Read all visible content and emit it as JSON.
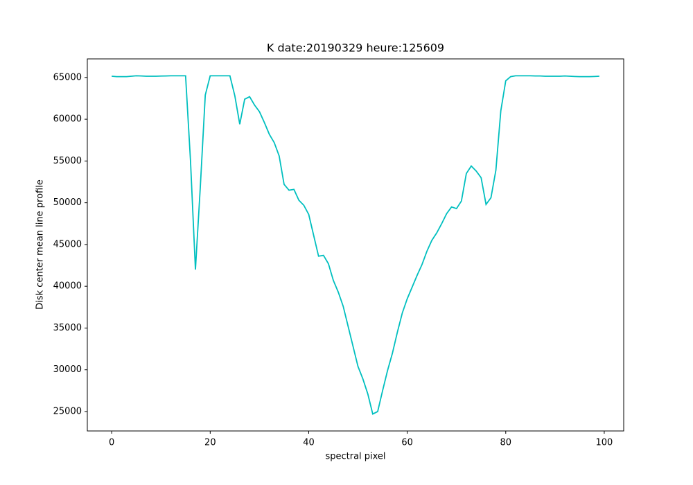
{
  "chart_data": {
    "type": "line",
    "title": "K date:20190329 heure:125609",
    "x_label": "spectral pixel",
    "y_label": "Disk center mean line profile",
    "x": [
      0,
      1,
      2,
      3,
      4,
      5,
      6,
      7,
      8,
      9,
      10,
      11,
      12,
      13,
      14,
      15,
      16,
      17,
      18,
      19,
      20,
      21,
      22,
      23,
      24,
      25,
      26,
      27,
      28,
      29,
      30,
      31,
      32,
      33,
      34,
      35,
      36,
      37,
      38,
      39,
      40,
      41,
      42,
      43,
      44,
      45,
      46,
      47,
      48,
      49,
      50,
      51,
      52,
      53,
      54,
      55,
      56,
      57,
      58,
      59,
      60,
      61,
      62,
      63,
      64,
      65,
      66,
      67,
      68,
      69,
      70,
      71,
      72,
      73,
      74,
      75,
      76,
      77,
      78,
      79,
      80,
      81,
      82,
      83,
      84,
      85,
      86,
      87,
      88,
      89,
      90,
      91,
      92,
      93,
      94,
      95,
      96,
      97,
      98,
      99
    ],
    "series": [
      {
        "name": "Disk center mean line profile",
        "color": "#00bfbf",
        "values": [
          65150,
          65100,
          65100,
          65100,
          65150,
          65200,
          65180,
          65150,
          65150,
          65150,
          65170,
          65180,
          65200,
          65200,
          65200,
          65200,
          55000,
          42000,
          52000,
          62900,
          65200,
          65200,
          65200,
          65200,
          65200,
          62800,
          59400,
          62400,
          62700,
          61700,
          60900,
          59600,
          58200,
          57200,
          55600,
          52200,
          51500,
          51600,
          50300,
          49700,
          48600,
          46100,
          43600,
          43700,
          42700,
          40700,
          39300,
          37600,
          35200,
          32800,
          30400,
          28900,
          27100,
          24700,
          25000,
          27500,
          29900,
          32000,
          34500,
          36800,
          38500,
          39900,
          41300,
          42600,
          44200,
          45500,
          46400,
          47500,
          48700,
          49500,
          49300,
          50200,
          53500,
          54400,
          53800,
          53000,
          49800,
          50600,
          53900,
          61000,
          64600,
          65100,
          65200,
          65200,
          65200,
          65200,
          65180,
          65180,
          65150,
          65150,
          65150,
          65150,
          65180,
          65150,
          65120,
          65100,
          65100,
          65100,
          65120,
          65150
        ]
      }
    ],
    "xlim": [
      -4.95,
      103.95
    ],
    "ylim": [
      22675,
      67225
    ],
    "xticks": [
      0,
      20,
      40,
      60,
      80,
      100
    ],
    "yticks": [
      25000,
      30000,
      35000,
      40000,
      45000,
      50000,
      55000,
      60000,
      65000
    ],
    "grid": false
  }
}
